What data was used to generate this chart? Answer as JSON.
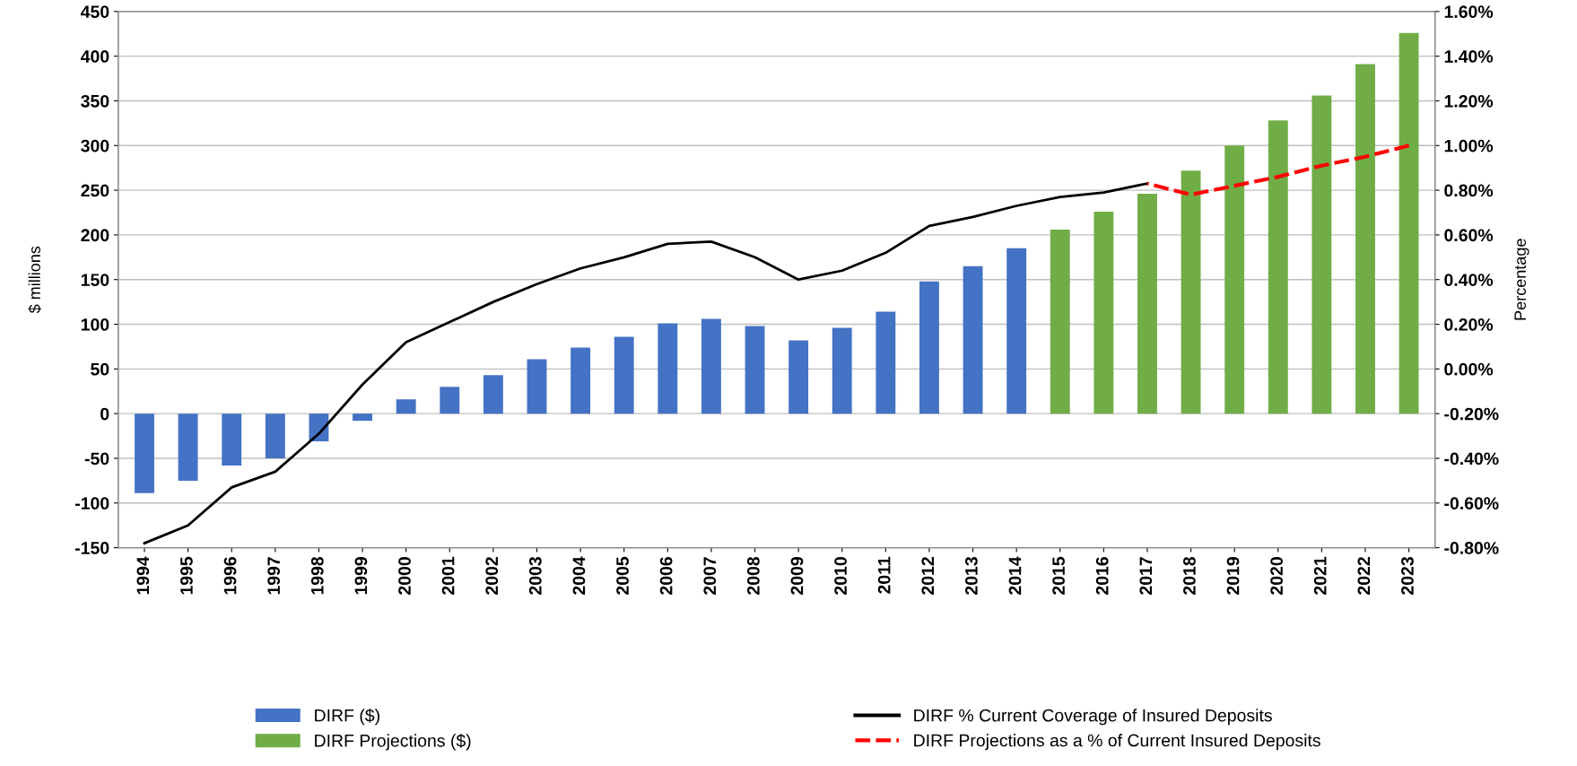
{
  "chart_data": {
    "type": "bar",
    "ylabel": "$ millions",
    "y2label": "Percentage",
    "categories": [
      "1994",
      "1995",
      "1996",
      "1997",
      "1998",
      "1999",
      "2000",
      "2001",
      "2002",
      "2003",
      "2004",
      "2005",
      "2006",
      "2007",
      "2008",
      "2009",
      "2010",
      "2011",
      "2012",
      "2013",
      "2014",
      "2015",
      "2016",
      "2017",
      "2018",
      "2019",
      "2020",
      "2021",
      "2022",
      "2023"
    ],
    "series": [
      {
        "name": "DIRF ($)",
        "color": "#4472c4",
        "values": [
          -89,
          -75,
          -58,
          -50,
          -31,
          -8,
          16,
          30,
          43,
          61,
          74,
          86,
          101,
          106,
          98,
          82,
          96,
          114,
          148,
          165,
          185,
          null,
          null,
          null,
          null,
          null,
          null,
          null,
          null,
          null
        ]
      },
      {
        "name": "DIRF Projections ($)",
        "color": "#70ad47",
        "values": [
          null,
          null,
          null,
          null,
          null,
          null,
          null,
          null,
          null,
          null,
          null,
          null,
          null,
          null,
          null,
          null,
          null,
          null,
          null,
          null,
          null,
          206,
          226,
          246,
          272,
          300,
          328,
          356,
          391,
          426
        ]
      },
      {
        "name": "DIRF % Current Coverage of Insured Deposits",
        "type": "line",
        "axis": "y2",
        "color": "#000000",
        "line_style": "solid",
        "values": [
          -0.78,
          -0.7,
          -0.53,
          -0.46,
          -0.29,
          -0.07,
          0.12,
          0.21,
          0.3,
          0.38,
          0.45,
          0.5,
          0.56,
          0.57,
          0.5,
          0.4,
          0.44,
          0.52,
          0.64,
          0.68,
          0.73,
          0.77,
          0.79,
          0.83,
          null,
          null,
          null,
          null,
          null,
          null
        ]
      },
      {
        "name": "DIRF Projections as a % of Current Insured Deposits",
        "type": "line",
        "axis": "y2",
        "color": "#ff0000",
        "line_style": "dashed",
        "values": [
          null,
          null,
          null,
          null,
          null,
          null,
          null,
          null,
          null,
          null,
          null,
          null,
          null,
          null,
          null,
          null,
          null,
          null,
          null,
          null,
          null,
          null,
          null,
          0.83,
          0.78,
          0.82,
          0.86,
          0.91,
          0.95,
          1.0
        ]
      }
    ],
    "ylim": [
      -150,
      450
    ],
    "yticks": [
      -150,
      -100,
      -50,
      0,
      50,
      100,
      150,
      200,
      250,
      300,
      350,
      400,
      450
    ],
    "y2lim": [
      -0.8,
      1.6
    ],
    "y2ticks": [
      {
        "value": -0.8,
        "label": "-0.80%"
      },
      {
        "value": -0.6,
        "label": "-0.60%"
      },
      {
        "value": -0.4,
        "label": "-0.40%"
      },
      {
        "value": -0.2,
        "label": "-0.20%"
      },
      {
        "value": 0,
        "label": "0.00%"
      },
      {
        "value": 0.2,
        "label": "0.20%"
      },
      {
        "value": 0.4,
        "label": "0.40%"
      },
      {
        "value": 0.6,
        "label": "0.60%"
      },
      {
        "value": 0.8,
        "label": "0.80%"
      },
      {
        "value": 1.0,
        "label": "1.00%"
      },
      {
        "value": 1.2,
        "label": "1.20%"
      },
      {
        "value": 1.4,
        "label": "1.40%"
      },
      {
        "value": 1.6,
        "label": "1.60%"
      }
    ],
    "grid": "y",
    "legend": "bottom"
  }
}
